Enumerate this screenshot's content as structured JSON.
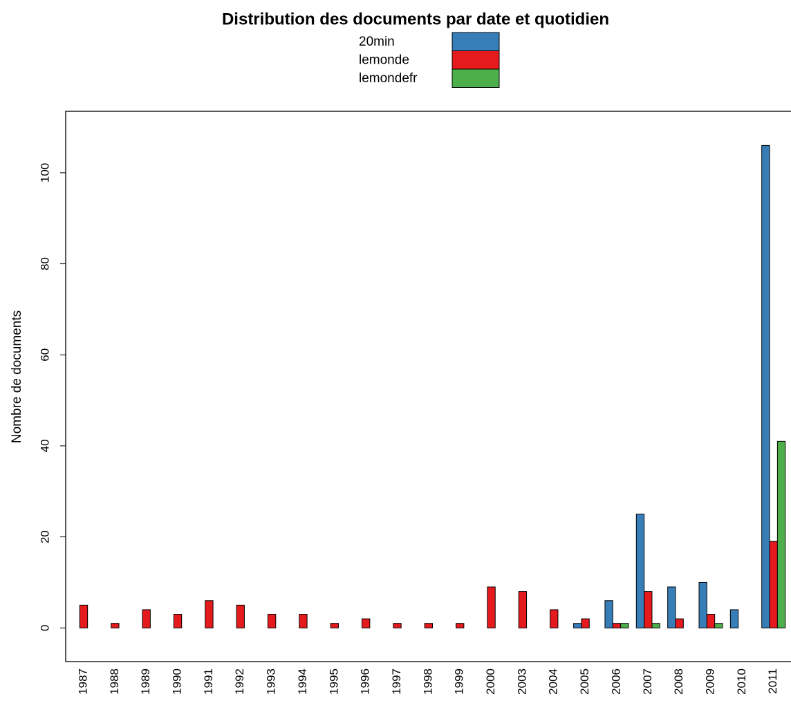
{
  "chart_data": {
    "type": "bar",
    "title": "Distribution des documents par date et quotidien",
    "y_label": "Nombre de documents",
    "categories": [
      "1987",
      "1988",
      "1989",
      "1990",
      "1991",
      "1992",
      "1993",
      "1994",
      "1995",
      "1996",
      "1997",
      "1998",
      "1999",
      "2000",
      "2003",
      "2004",
      "2005",
      "2006",
      "2007",
      "2008",
      "2009",
      "2010",
      "2011"
    ],
    "series": [
      {
        "name": "20min",
        "color": "#377eb8",
        "values": [
          0,
          0,
          0,
          0,
          0,
          0,
          0,
          0,
          0,
          0,
          0,
          0,
          0,
          0,
          0,
          0,
          1,
          6,
          25,
          9,
          10,
          4,
          106
        ]
      },
      {
        "name": "lemonde",
        "color": "#e41a1c",
        "values": [
          5,
          1,
          4,
          3,
          6,
          5,
          3,
          3,
          1,
          2,
          1,
          1,
          1,
          9,
          8,
          4,
          2,
          1,
          8,
          2,
          3,
          0,
          19
        ]
      },
      {
        "name": "lemondefr",
        "color": "#4daf4a",
        "values": [
          0,
          0,
          0,
          0,
          0,
          0,
          0,
          0,
          0,
          0,
          0,
          0,
          0,
          0,
          0,
          0,
          0,
          1,
          1,
          0,
          1,
          0,
          41
        ]
      }
    ],
    "ylim": [
      -7.4,
      113.5
    ],
    "yticks": [
      0,
      20,
      40,
      60,
      80,
      100
    ],
    "legend": "top"
  }
}
